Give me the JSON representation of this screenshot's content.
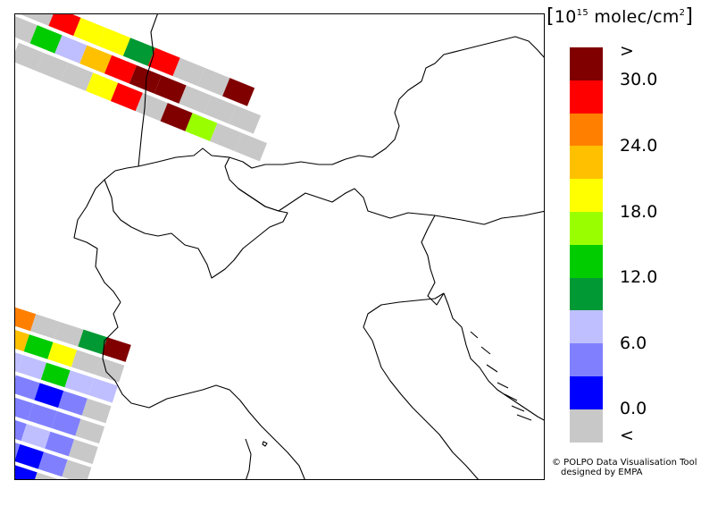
{
  "legend": {
    "unit_prefix": "10",
    "unit_exponent": "15",
    "unit_suffix": "molec/cm",
    "unit_suffix_exp": "2",
    "bins": [
      {
        "color": "#800000"
      },
      {
        "color": "#ff0000"
      },
      {
        "color": "#ff8000"
      },
      {
        "color": "#ffc000"
      },
      {
        "color": "#ffff00"
      },
      {
        "color": "#99ff00"
      },
      {
        "color": "#00cc00"
      },
      {
        "color": "#009933"
      },
      {
        "color": "#bfbfff"
      },
      {
        "color": "#8080ff"
      },
      {
        "color": "#0000ff"
      },
      {
        "color": "#c8c8c8"
      }
    ],
    "labels": [
      ">",
      "30.0",
      "24.0",
      "18.0",
      "12.0",
      "6.0",
      "0.0",
      "<"
    ]
  },
  "credits": {
    "line1": "© POLPO Data Visualisation Tool",
    "line2": "designed by EMPA"
  },
  "swaths": {
    "top": {
      "rows": [
        [
          "#c8c8c8",
          "#c8c8c8",
          "#ff0000",
          "#ffff00",
          "#ffff00",
          "#009933",
          "#ff0000",
          "#c8c8c8",
          "#c8c8c8",
          "#800000"
        ],
        [
          "#c8c8c8",
          "#00cc00",
          "#bfbfff",
          "#ffc000",
          "#ff0000",
          "#800000",
          "#800000",
          "#c8c8c8",
          "#c8c8c8",
          "#c8c8c8"
        ],
        [
          "#c8c8c8",
          "#c8c8c8",
          "#c8c8c8",
          "#ffff00",
          "#ff0000",
          "#c8c8c8",
          "#800000",
          "#99ff00",
          "#c8c8c8",
          "#c8c8c8"
        ]
      ]
    },
    "bottom": {
      "rows": [
        [
          "#009933",
          "#ff8000",
          "#c8c8c8",
          "#c8c8c8",
          "#009933",
          "#800000"
        ],
        [
          "#ffff00",
          "#ffc000",
          "#00cc00",
          "#ffff00",
          "#c8c8c8",
          "#c8c8c8"
        ],
        [
          "#ffc000",
          "#bfbfff",
          "#bfbfff",
          "#00cc00",
          "#bfbfff",
          "#bfbfff"
        ],
        [
          "#99ff00",
          "#bfbfff",
          "#8080ff",
          "#0000ff",
          "#8080ff",
          "#c8c8c8"
        ],
        [
          "#00cc00",
          "#8080ff",
          "#8080ff",
          "#8080ff",
          "#8080ff",
          "#c8c8c8"
        ],
        [
          "#00cc00",
          "#bfbfff",
          "#8080ff",
          "#bfbfff",
          "#8080ff",
          "#c8c8c8"
        ],
        [
          "#009933",
          "#00cc00",
          "#8080ff",
          "#0000ff",
          "#8080ff",
          "#c8c8c8"
        ],
        [
          "#0000ff",
          "#0000ff",
          "#0000ff",
          "#0000ff",
          "#c8c8c8",
          "#c8c8c8"
        ]
      ]
    }
  }
}
